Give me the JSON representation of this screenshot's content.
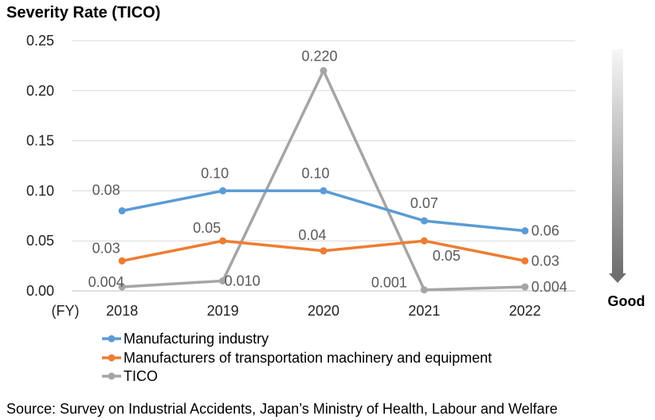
{
  "chart_data": {
    "type": "line",
    "title": "Severity Rate (TICO)",
    "xlabel": "(FY)",
    "categories": [
      "2018",
      "2019",
      "2020",
      "2021",
      "2022"
    ],
    "yticks": [
      "0.00",
      "0.05",
      "0.10",
      "0.15",
      "0.20",
      "0.25"
    ],
    "ylim": [
      0,
      0.25
    ],
    "grid": true,
    "series": [
      {
        "name": "Manufacturing industry",
        "color": "#5B9BD5",
        "values": [
          0.08,
          0.1,
          0.1,
          0.07,
          0.06
        ],
        "labels": [
          "0.08",
          "0.10",
          "0.10",
          "0.07",
          "0.06"
        ]
      },
      {
        "name": "Manufacturers of transportation machinery and equipment",
        "color": "#ED7D31",
        "values": [
          0.03,
          0.05,
          0.04,
          0.05,
          0.03
        ],
        "labels": [
          "0.03",
          "0.05",
          "0.04",
          "0.05",
          "0.03"
        ]
      },
      {
        "name": "TICO",
        "color": "#A5A5A5",
        "values": [
          0.004,
          0.01,
          0.22,
          0.001,
          0.004
        ],
        "labels": [
          "0.004",
          "0.010",
          "0.220",
          "0.001",
          "0.004"
        ]
      }
    ],
    "annotation": "Good",
    "legend_position": "bottom-left"
  },
  "source": "Source: Survey on Industrial Accidents, Japan’s Ministry of Health, Labour and Welfare"
}
